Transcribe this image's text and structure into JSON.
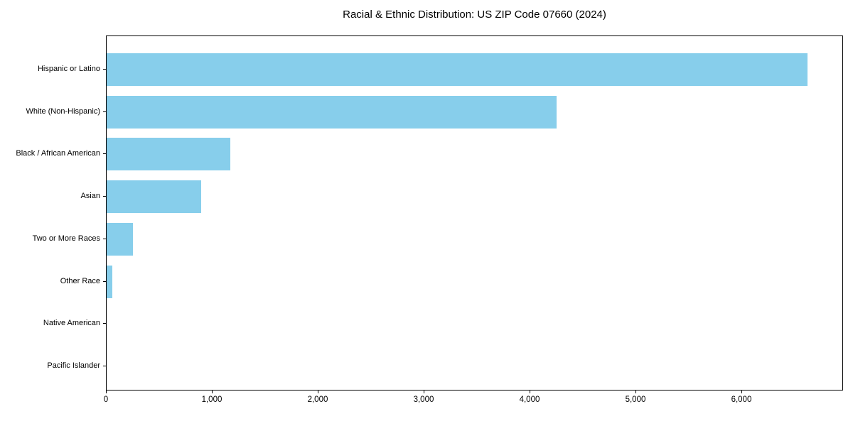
{
  "figure": {
    "title": "Racial & Ethnic Distribution: US ZIP Code 07660 (2024)"
  },
  "chart_data": {
    "type": "bar",
    "orientation": "horizontal",
    "title": "Racial & Ethnic Distribution: US ZIP Code 07660 (2024)",
    "categories": [
      "Hispanic or Latino",
      "White (Non-Hispanic)",
      "Black / African American",
      "Asian",
      "Two or More Races",
      "Other Race",
      "Native American",
      "Pacific Islander"
    ],
    "values": [
      6620,
      4250,
      1170,
      890,
      245,
      55,
      0,
      0
    ],
    "xlabel": "",
    "ylabel": "",
    "xlim": [
      0,
      6960
    ],
    "x_ticks": [
      0,
      1000,
      2000,
      3000,
      4000,
      5000,
      6000
    ],
    "x_tick_labels": [
      "0",
      "1,000",
      "2,000",
      "3,000",
      "4,000",
      "5,000",
      "6,000"
    ],
    "bar_color": "#87CEEB",
    "text_color": "#000000",
    "spine_color": "#000000",
    "background": "#ffffff",
    "grid": false,
    "legend": null
  }
}
